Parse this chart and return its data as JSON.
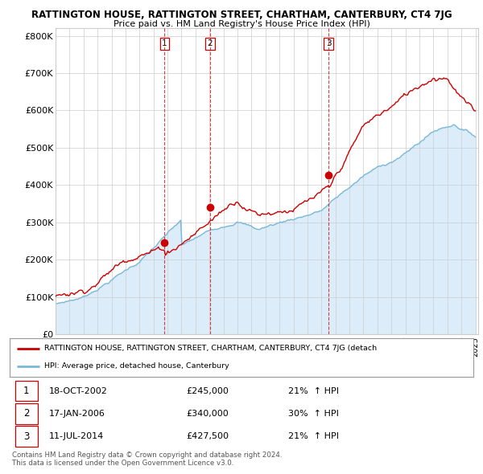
{
  "title": "RATTINGTON HOUSE, RATTINGTON STREET, CHARTHAM, CANTERBURY, CT4 7JG",
  "subtitle": "Price paid vs. HM Land Registry's House Price Index (HPI)",
  "y_ticks": [
    0,
    100000,
    200000,
    300000,
    400000,
    500000,
    600000,
    700000,
    800000
  ],
  "y_tick_labels": [
    "£0",
    "£100K",
    "£200K",
    "£300K",
    "£400K",
    "£500K",
    "£600K",
    "£700K",
    "£800K"
  ],
  "sales": [
    {
      "date_label": "18-OCT-2002",
      "date_num": 2002.79,
      "price": 245000,
      "number": 1,
      "pct": "21%",
      "dir": "↑"
    },
    {
      "date_label": "17-JAN-2006",
      "date_num": 2006.04,
      "price": 340000,
      "number": 2,
      "pct": "30%",
      "dir": "↑"
    },
    {
      "date_label": "11-JUL-2014",
      "date_num": 2014.52,
      "price": 427500,
      "number": 3,
      "pct": "21%",
      "dir": "↑"
    }
  ],
  "hpi_color": "#7ab8d9",
  "hpi_fill_color": "#d6eaf8",
  "property_color": "#cc0000",
  "vline_color": "#cc0000",
  "background_color": "#ffffff",
  "grid_color": "#cccccc",
  "legend_label_property": "RATTINGTON HOUSE, RATTINGTON STREET, CHARTHAM, CANTERBURY, CT4 7JG (detach",
  "legend_label_hpi": "HPI: Average price, detached house, Canterbury",
  "footer": "Contains HM Land Registry data © Crown copyright and database right 2024.\nThis data is licensed under the Open Government Licence v3.0."
}
